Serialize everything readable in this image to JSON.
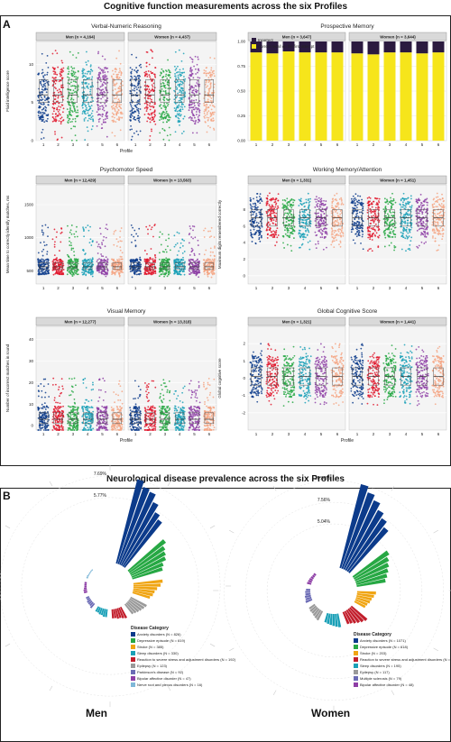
{
  "figure": {
    "title_a": "Cognitive function measurements across the six Profiles",
    "title_b": "Neurological disease prevalence across the six Profiles",
    "label_a": "A",
    "label_b": "B"
  },
  "colors": [
    "#0c3b8b",
    "#e0162b",
    "#27a844",
    "#1aa0b7",
    "#8e3fa6",
    "#f4a582"
  ],
  "chart_data": [
    {
      "type": "scatter",
      "title": "Verbal-Numeric Reasoning",
      "panels": [
        "Men (n = 4,164)",
        "Women (n = 4,437)"
      ],
      "xlabel": "Profile",
      "ylabel": "Fluid intelligence score",
      "categories": [
        "1",
        "2",
        "3",
        "4",
        "5",
        "6"
      ],
      "yticks": [
        "0",
        "5",
        "10"
      ],
      "ylim": [
        0,
        13
      ],
      "median": [
        6,
        6,
        6,
        6,
        6,
        6
      ],
      "q1": [
        5,
        5,
        5,
        5,
        5,
        5
      ],
      "q3": [
        8,
        8,
        8,
        8,
        8,
        8
      ],
      "spread": [
        0,
        12
      ],
      "grid": true
    },
    {
      "type": "bar",
      "title": "Prospective Memory",
      "panels": [
        "Men (n = 3,647)",
        "Women (n = 3,644)"
      ],
      "xlabel": "",
      "ylabel": "",
      "categories": [
        "1",
        "2",
        "3",
        "4",
        "5",
        "6"
      ],
      "yticks": [
        "0.00",
        "0.25",
        "0.50",
        "0.75",
        "1.00"
      ],
      "ylim": [
        0,
        1
      ],
      "legend": [
        "Incorrect",
        "Correct recall on the first attempt"
      ],
      "series": [
        {
          "name": "Correct recall on the first attempt",
          "values_men": [
            0.89,
            0.88,
            0.9,
            0.89,
            0.89,
            0.89
          ],
          "values_women": [
            0.88,
            0.87,
            0.89,
            0.89,
            0.88,
            0.89
          ],
          "color": "#f6e51b"
        },
        {
          "name": "Incorrect",
          "values_men": [
            0.11,
            0.12,
            0.1,
            0.11,
            0.11,
            0.11
          ],
          "values_women": [
            0.12,
            0.13,
            0.11,
            0.11,
            0.12,
            0.11
          ],
          "color": "#2b1a3f"
        }
      ]
    },
    {
      "type": "scatter",
      "title": "Psychomotor Speed",
      "panels": [
        "Men (n = 12,429)",
        "Women (n = 13,563)"
      ],
      "xlabel": "",
      "ylabel": "Mean time to correctly identify matches, ms",
      "categories": [
        "1",
        "2",
        "3",
        "4",
        "5",
        "6"
      ],
      "yticks": [
        "500",
        "1000",
        "1500"
      ],
      "ylim": [
        300,
        1800
      ],
      "median": [
        560,
        560,
        560,
        560,
        560,
        560
      ],
      "q1": [
        520,
        520,
        520,
        520,
        520,
        520
      ],
      "q3": [
        620,
        620,
        620,
        620,
        620,
        620
      ],
      "spread": [
        400,
        1200
      ],
      "grid": true
    },
    {
      "type": "scatter",
      "title": "Working Memory/Attention",
      "panels": [
        "Men (n = 1,331)",
        "Women (n = 1,451)"
      ],
      "xlabel": "",
      "ylabel": "Maximum digits remembered correctly",
      "categories": [
        "1",
        "2",
        "3",
        "4",
        "5",
        "6"
      ],
      "yticks": [
        "0",
        "2",
        "4",
        "6",
        "8"
      ],
      "ylim": [
        -1,
        11
      ],
      "median": [
        7,
        7,
        7,
        7,
        7,
        7
      ],
      "q1": [
        6,
        6,
        6,
        6,
        6,
        6
      ],
      "q3": [
        8,
        8,
        8,
        8,
        8,
        8
      ],
      "spread": [
        3,
        10
      ],
      "grid": true
    },
    {
      "type": "scatter",
      "title": "Visual Memory",
      "panels": [
        "Men (n = 12,277)",
        "Women (n = 13,318)"
      ],
      "xlabel": "Profile",
      "ylabel": "Number of incorrect matches in round",
      "categories": [
        "1",
        "2",
        "3",
        "4",
        "5",
        "6"
      ],
      "yticks": [
        "0",
        "10",
        "20",
        "30",
        "40"
      ],
      "ylim": [
        -2,
        46
      ],
      "median": [
        3,
        3,
        3,
        3,
        3,
        3
      ],
      "q1": [
        1,
        1,
        1,
        1,
        1,
        1
      ],
      "q3": [
        6,
        6,
        6,
        6,
        6,
        6
      ],
      "spread": [
        0,
        22
      ],
      "grid": true
    },
    {
      "type": "scatter",
      "title": "Global Cognitive Score",
      "panels": [
        "Men (n = 1,321)",
        "Women (n = 1,441)"
      ],
      "xlabel": "Profile",
      "ylabel": "Global cognitive score",
      "categories": [
        "1",
        "2",
        "3",
        "4",
        "5",
        "6"
      ],
      "yticks": [
        "-2",
        "-1",
        "0",
        "1",
        "2"
      ],
      "ylim": [
        -3,
        3
      ],
      "median": [
        0.1,
        0.1,
        0.1,
        0.1,
        0.1,
        0.1
      ],
      "q1": [
        -0.4,
        -0.4,
        -0.4,
        -0.4,
        -0.4,
        -0.4
      ],
      "q3": [
        0.6,
        0.6,
        0.6,
        0.6,
        0.6,
        0.6
      ],
      "spread": [
        -1.6,
        2
      ],
      "grid": true
    },
    {
      "type": "bar",
      "title": "Men",
      "subtype": "circular",
      "rings": [
        "7.69%",
        "5.77%"
      ],
      "legend_title": "Disease Category",
      "legend": [
        {
          "name": "Anxiety disorders (N = 826)",
          "color": "#0c3b8b"
        },
        {
          "name": "Depressive episode (N = 619)",
          "color": "#27a844"
        },
        {
          "name": "Stroke (N = 385)",
          "color": "#f0a513"
        },
        {
          "name": "Sleep disorders (N = 330)",
          "color": "#1aa0b7"
        },
        {
          "name": "Reaction to severe stress and adjustment disorders (N = 192)",
          "color": "#c21e2c"
        },
        {
          "name": "Epilepsy (N = 123)",
          "color": "#9a9a9a"
        },
        {
          "name": "Parkinson's disease (N = 92)",
          "color": "#6b6bb5"
        },
        {
          "name": "Bipolar affective disorder (N = 47)",
          "color": "#8e3fa6"
        },
        {
          "name": "Nerve root and plexus disorders (N = 16)",
          "color": "#7fb8d8"
        }
      ],
      "groups": [
        {
          "color": "#0c3b8b",
          "values": [
            7.69,
            7.2,
            7.0,
            6.3,
            5.6,
            5.2
          ]
        },
        {
          "color": "#27a844",
          "values": [
            4.2,
            3.8,
            3.6,
            3.4,
            3.0,
            2.8
          ]
        },
        {
          "color": "#f0a513",
          "values": [
            2.6,
            2.4,
            2.1,
            1.9,
            1.8,
            1.6
          ]
        },
        {
          "color": "#9a9a9a",
          "values": [
            1.6,
            1.5,
            1.4,
            1.3,
            1.2,
            1.1
          ]
        },
        {
          "color": "#c21e2c",
          "values": [
            1.1,
            1.0,
            0.9,
            0.9,
            0.8,
            0.8
          ]
        },
        {
          "color": "#1aa0b7",
          "values": [
            0.7,
            0.7,
            0.6,
            0.6,
            0.5,
            0.5
          ]
        },
        {
          "color": "#6b6bb5",
          "values": [
            0.5,
            0.4,
            0.4,
            0.4,
            0.3,
            0.3
          ]
        },
        {
          "color": "#8e3fa6",
          "values": [
            0.3,
            0.3,
            0.25,
            0.2,
            0.2,
            0.2
          ]
        },
        {
          "color": "#7fb8d8",
          "values": [
            0.15,
            0.15,
            0.1,
            0.1,
            0.1,
            0.1
          ]
        }
      ]
    },
    {
      "type": "bar",
      "title": "Women",
      "subtype": "circular",
      "rings": [
        "10.08%",
        "7.56%",
        "5.04%"
      ],
      "legend_title": "Disease Category",
      "legend": [
        {
          "name": "Anxiety disorders (N = 1071)",
          "color": "#0c3b8b"
        },
        {
          "name": "Depressive episode (N = 618)",
          "color": "#27a844"
        },
        {
          "name": "Stroke (N = 203)",
          "color": "#f0a513"
        },
        {
          "name": "Reaction to severe stress and adjustment disorders (N = 236)",
          "color": "#c21e2c"
        },
        {
          "name": "Sleep disorders (N = 195)",
          "color": "#1aa0b7"
        },
        {
          "name": "Epilepsy (N = 117)",
          "color": "#9a9a9a"
        },
        {
          "name": "Multiple sclerosis (N = 79)",
          "color": "#6b6bb5"
        },
        {
          "name": "Bipolar affective disorder (N = 48)",
          "color": "#8e3fa6"
        }
      ],
      "groups": [
        {
          "color": "#0c3b8b",
          "values": [
            10.08,
            9.4,
            8.8,
            8.0,
            7.4,
            6.7
          ]
        },
        {
          "color": "#27a844",
          "values": [
            5.0,
            4.6,
            4.3,
            4.0,
            3.7,
            3.4
          ]
        },
        {
          "color": "#f0a513",
          "values": [
            2.2,
            2.0,
            1.8,
            1.7,
            1.5,
            1.4
          ]
        },
        {
          "color": "#c21e2c",
          "values": [
            2.4,
            2.2,
            2.0,
            1.8,
            1.6,
            1.5
          ]
        },
        {
          "color": "#1aa0b7",
          "values": [
            1.6,
            1.5,
            1.4,
            1.3,
            1.2,
            1.1
          ]
        },
        {
          "color": "#9a9a9a",
          "values": [
            1.2,
            1.1,
            1.0,
            0.9,
            0.9,
            0.8
          ]
        },
        {
          "color": "#6b6bb5",
          "values": [
            0.8,
            0.7,
            0.7,
            0.6,
            0.6,
            0.5
          ]
        },
        {
          "color": "#8e3fa6",
          "values": [
            0.5,
            0.45,
            0.4,
            0.35,
            0.3,
            0.3
          ]
        }
      ]
    }
  ]
}
